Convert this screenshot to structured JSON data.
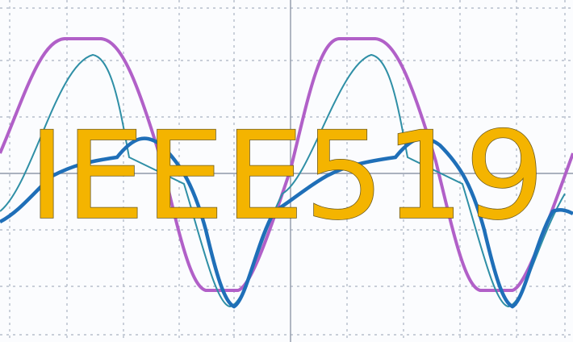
{
  "overlay_text": "IEEE519"
}
